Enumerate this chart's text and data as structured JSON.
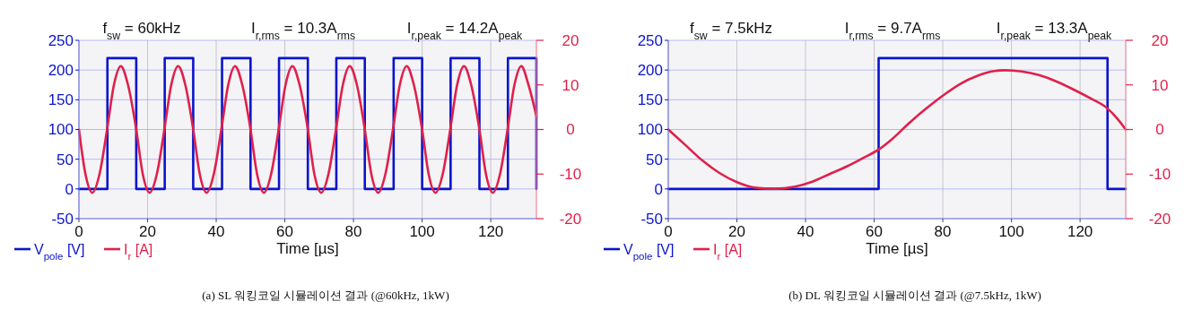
{
  "chart_data": [
    {
      "type": "line",
      "title": "(a) SL 워킹코일 시뮬레이션 결과 (@60kHz, 1kW)",
      "annotations": [
        "f$_{sw}$ = 60kHz",
        "I$_{r,rms}$ = 10.3A$_{rms}$",
        "I$_{r,peak}$ = 14.2A$_{peak}$"
      ],
      "xlabel": "Time [µs]",
      "xlim": [
        0,
        133.3
      ],
      "xticks": [
        0,
        20,
        40,
        60,
        80,
        100,
        120
      ],
      "ylim": [
        -50,
        250
      ],
      "yticks": [
        -50,
        0,
        50,
        100,
        150,
        200,
        250
      ],
      "y2lim": [
        -20,
        20
      ],
      "y2ticks": [
        -20,
        -10,
        0,
        10,
        20
      ],
      "grid": true,
      "legend": "bottom left",
      "line_style": "solid",
      "series": [
        {
          "name": "V$_{pole}$ [V]",
          "type": "step",
          "color": "#0a14cc",
          "x": [
            0,
            8.3,
            16.7,
            25,
            33.3,
            41.7,
            50,
            58.3,
            66.7,
            75,
            83.3,
            91.7,
            100,
            108.3,
            116.7,
            125,
            133.3
          ],
          "values": [
            0,
            220,
            0,
            220,
            0,
            220,
            0,
            220,
            0,
            220,
            0,
            220,
            0,
            220,
            0,
            220,
            0
          ]
        },
        {
          "name": "I$_{r}$ [A]",
          "axis": "y2",
          "color": "#e0204a",
          "x": [
            0,
            1.9,
            3.9,
            6,
            8.2,
            10.2,
            12.2,
            14.3,
            16.7,
            18.6,
            20.6,
            22.7,
            24.9,
            26.9,
            28.9,
            31,
            33.3,
            35.2,
            37.2,
            39.3,
            41.5,
            43.5,
            45.5,
            47.6,
            50,
            51.9,
            53.9,
            56,
            58.2,
            60.2,
            62.2,
            64.3,
            66.7,
            68.6,
            70.6,
            72.7,
            74.9,
            76.9,
            78.9,
            81,
            83.3,
            85.2,
            87.2,
            89.3,
            91.5,
            93.5,
            95.5,
            97.6,
            100,
            101.9,
            103.9,
            106,
            108.2,
            110.2,
            112.2,
            114.3,
            116.7,
            118.6,
            120.6,
            122.7,
            124.9,
            126.9,
            128.9,
            131,
            133.3
          ],
          "values": [
            0,
            -10,
            -14.2,
            -10,
            0,
            10,
            14.2,
            10,
            0,
            -10,
            -14.2,
            -10,
            0,
            10,
            14.2,
            10,
            0,
            -10,
            -14.2,
            -10,
            0,
            10,
            14.2,
            10,
            0,
            -10,
            -14.2,
            -10,
            0,
            10,
            14.2,
            10,
            0,
            -10,
            -14.2,
            -10,
            0,
            10,
            14.2,
            10,
            0,
            -10,
            -14.2,
            -10,
            0,
            10,
            14.2,
            10,
            0,
            -10,
            -14.2,
            -10,
            0,
            10,
            14.2,
            10,
            0,
            -10,
            -14.2,
            -10,
            0,
            10,
            14.2,
            10,
            3
          ]
        }
      ]
    },
    {
      "type": "line",
      "title": "(b) DL 워킹코일 시뮬레이션 결과 (@7.5kHz, 1kW)",
      "annotations": [
        "f$_{sw}$ = 7.5kHz",
        "I$_{r,rms}$ = 9.7A$_{rms}$",
        "I$_{r,peak}$ = 13.3A$_{peak}$"
      ],
      "xlabel": "Time [µs]",
      "xlim": [
        0,
        133.3
      ],
      "xticks": [
        0,
        20,
        40,
        60,
        80,
        100,
        120
      ],
      "ylim": [
        -50,
        250
      ],
      "yticks": [
        -50,
        0,
        50,
        100,
        150,
        200,
        250
      ],
      "y2lim": [
        -20,
        20
      ],
      "y2ticks": [
        -20,
        -10,
        0,
        10,
        20
      ],
      "grid": true,
      "legend": "bottom left",
      "line_style": "solid",
      "series": [
        {
          "name": "V$_{pole}$ [V]",
          "type": "step",
          "color": "#0a14cc",
          "x": [
            0,
            61.3,
            128,
            133.3
          ],
          "values": [
            0,
            220,
            0,
            0
          ]
        },
        {
          "name": "I$_{r}$ [A]",
          "axis": "y2",
          "color": "#e0204a",
          "x": [
            0,
            5,
            10,
            15,
            20,
            25,
            31,
            37,
            42,
            47,
            52,
            57,
            61.3,
            65,
            70,
            75,
            80,
            85,
            90,
            95,
            98,
            103,
            108,
            113,
            118,
            123,
            128,
            131,
            133.3
          ],
          "values": [
            0,
            -3.5,
            -7,
            -9.8,
            -11.8,
            -13,
            -13.3,
            -12.8,
            -11.7,
            -10,
            -8.3,
            -6.3,
            -4.5,
            -2.3,
            1.3,
            4.6,
            7.6,
            10.2,
            12,
            13.1,
            13.3,
            13,
            12.2,
            10.8,
            9,
            7,
            4.7,
            2.3,
            0
          ]
        }
      ]
    }
  ]
}
